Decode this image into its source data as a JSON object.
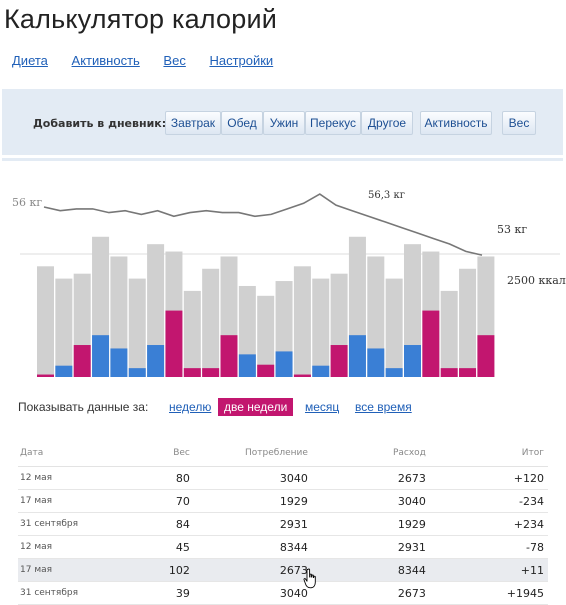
{
  "app": {
    "title": "Калькулятор калорий"
  },
  "nav": [
    {
      "label": "Диета"
    },
    {
      "label": "Активность"
    },
    {
      "label": "Вес"
    },
    {
      "label": "Настройки"
    }
  ],
  "diary": {
    "label": "Добавить в дневник:",
    "buttons": [
      "Завтрак",
      "Обед",
      "Ужин",
      "Перекус",
      "Другое",
      "Активность",
      "Вес"
    ]
  },
  "colors": {
    "accent": "#c2166f",
    "blue": "#3a7fd5",
    "bar_gray": "#d0d0d0",
    "link": "#2060b8"
  },
  "chart_data": {
    "type": "bar",
    "weight_labels": {
      "start": "56 кг",
      "peak": "56,3 кг",
      "end": "53 кг"
    },
    "calorie_label": "2500 ккал",
    "weight_series": [
      55.6,
      55.4,
      55.5,
      55.5,
      55.3,
      55.4,
      55.2,
      55.4,
      55.1,
      55.3,
      55.4,
      55.3,
      55.3,
      55.1,
      55.2,
      55.5,
      55.8,
      56.3,
      55.7,
      55.4,
      55.1,
      54.8,
      54.5,
      54.2,
      53.9,
      53.6,
      53.2,
      53.0
    ],
    "bars": [
      {
        "total": 2250,
        "segment": 50,
        "segment_type": "pink"
      },
      {
        "total": 2000,
        "segment": 230,
        "segment_type": "blue"
      },
      {
        "total": 2100,
        "segment": 650,
        "segment_type": "pink"
      },
      {
        "total": 2850,
        "segment": 850,
        "segment_type": "blue"
      },
      {
        "total": 2450,
        "segment": 580,
        "segment_type": "blue"
      },
      {
        "total": 2000,
        "segment": 180,
        "segment_type": "blue"
      },
      {
        "total": 2700,
        "segment": 650,
        "segment_type": "blue"
      },
      {
        "total": 2550,
        "segment": 1350,
        "segment_type": "pink"
      },
      {
        "total": 1750,
        "segment": 180,
        "segment_type": "pink"
      },
      {
        "total": 2200,
        "segment": 180,
        "segment_type": "pink"
      },
      {
        "total": 2450,
        "segment": 850,
        "segment_type": "pink"
      },
      {
        "total": 1850,
        "segment": 460,
        "segment_type": "blue"
      },
      {
        "total": 1650,
        "segment": 250,
        "segment_type": "pink"
      },
      {
        "total": 1950,
        "segment": 520,
        "segment_type": "blue"
      },
      {
        "total": 2250,
        "segment": 50,
        "segment_type": "pink"
      },
      {
        "total": 2000,
        "segment": 230,
        "segment_type": "blue"
      },
      {
        "total": 2100,
        "segment": 650,
        "segment_type": "pink"
      },
      {
        "total": 2850,
        "segment": 850,
        "segment_type": "blue"
      },
      {
        "total": 2450,
        "segment": 580,
        "segment_type": "blue"
      },
      {
        "total": 2000,
        "segment": 180,
        "segment_type": "blue"
      },
      {
        "total": 2700,
        "segment": 650,
        "segment_type": "blue"
      },
      {
        "total": 2550,
        "segment": 1350,
        "segment_type": "pink"
      },
      {
        "total": 1750,
        "segment": 180,
        "segment_type": "pink"
      },
      {
        "total": 2200,
        "segment": 180,
        "segment_type": "pink"
      },
      {
        "total": 2450,
        "segment": 850,
        "segment_type": "pink"
      }
    ],
    "reference_value": 2500
  },
  "period": {
    "label": "Показывать данные за:",
    "options": [
      "неделю",
      "две недели",
      "месяц",
      "все время"
    ],
    "selected": "две недели"
  },
  "table": {
    "headers": [
      "Дата",
      "Вес",
      "Потребление",
      "Расход",
      "Итог"
    ],
    "rows": [
      {
        "date": "12 мая",
        "weight": "80",
        "intake": "3040",
        "burn": "2673",
        "result": "+120",
        "sign": "pos"
      },
      {
        "date": "17 мая",
        "weight": "70",
        "intake": "1929",
        "burn": "3040",
        "result": "-234",
        "sign": "neg"
      },
      {
        "date": "31 сентября",
        "weight": "84",
        "intake": "2931",
        "burn": "1929",
        "result": "+234",
        "sign": "pos"
      },
      {
        "date": "12 мая",
        "weight": "45",
        "intake": "8344",
        "burn": "2931",
        "result": "-78",
        "sign": "neg"
      },
      {
        "date": "17 мая",
        "weight": "102",
        "intake": "2673",
        "burn": "8344",
        "result": "+11",
        "sign": "pos",
        "highlight": true
      },
      {
        "date": "31 сентября",
        "weight": "39",
        "intake": "3040",
        "burn": "2673",
        "result": "+1945",
        "sign": "pos"
      }
    ]
  }
}
